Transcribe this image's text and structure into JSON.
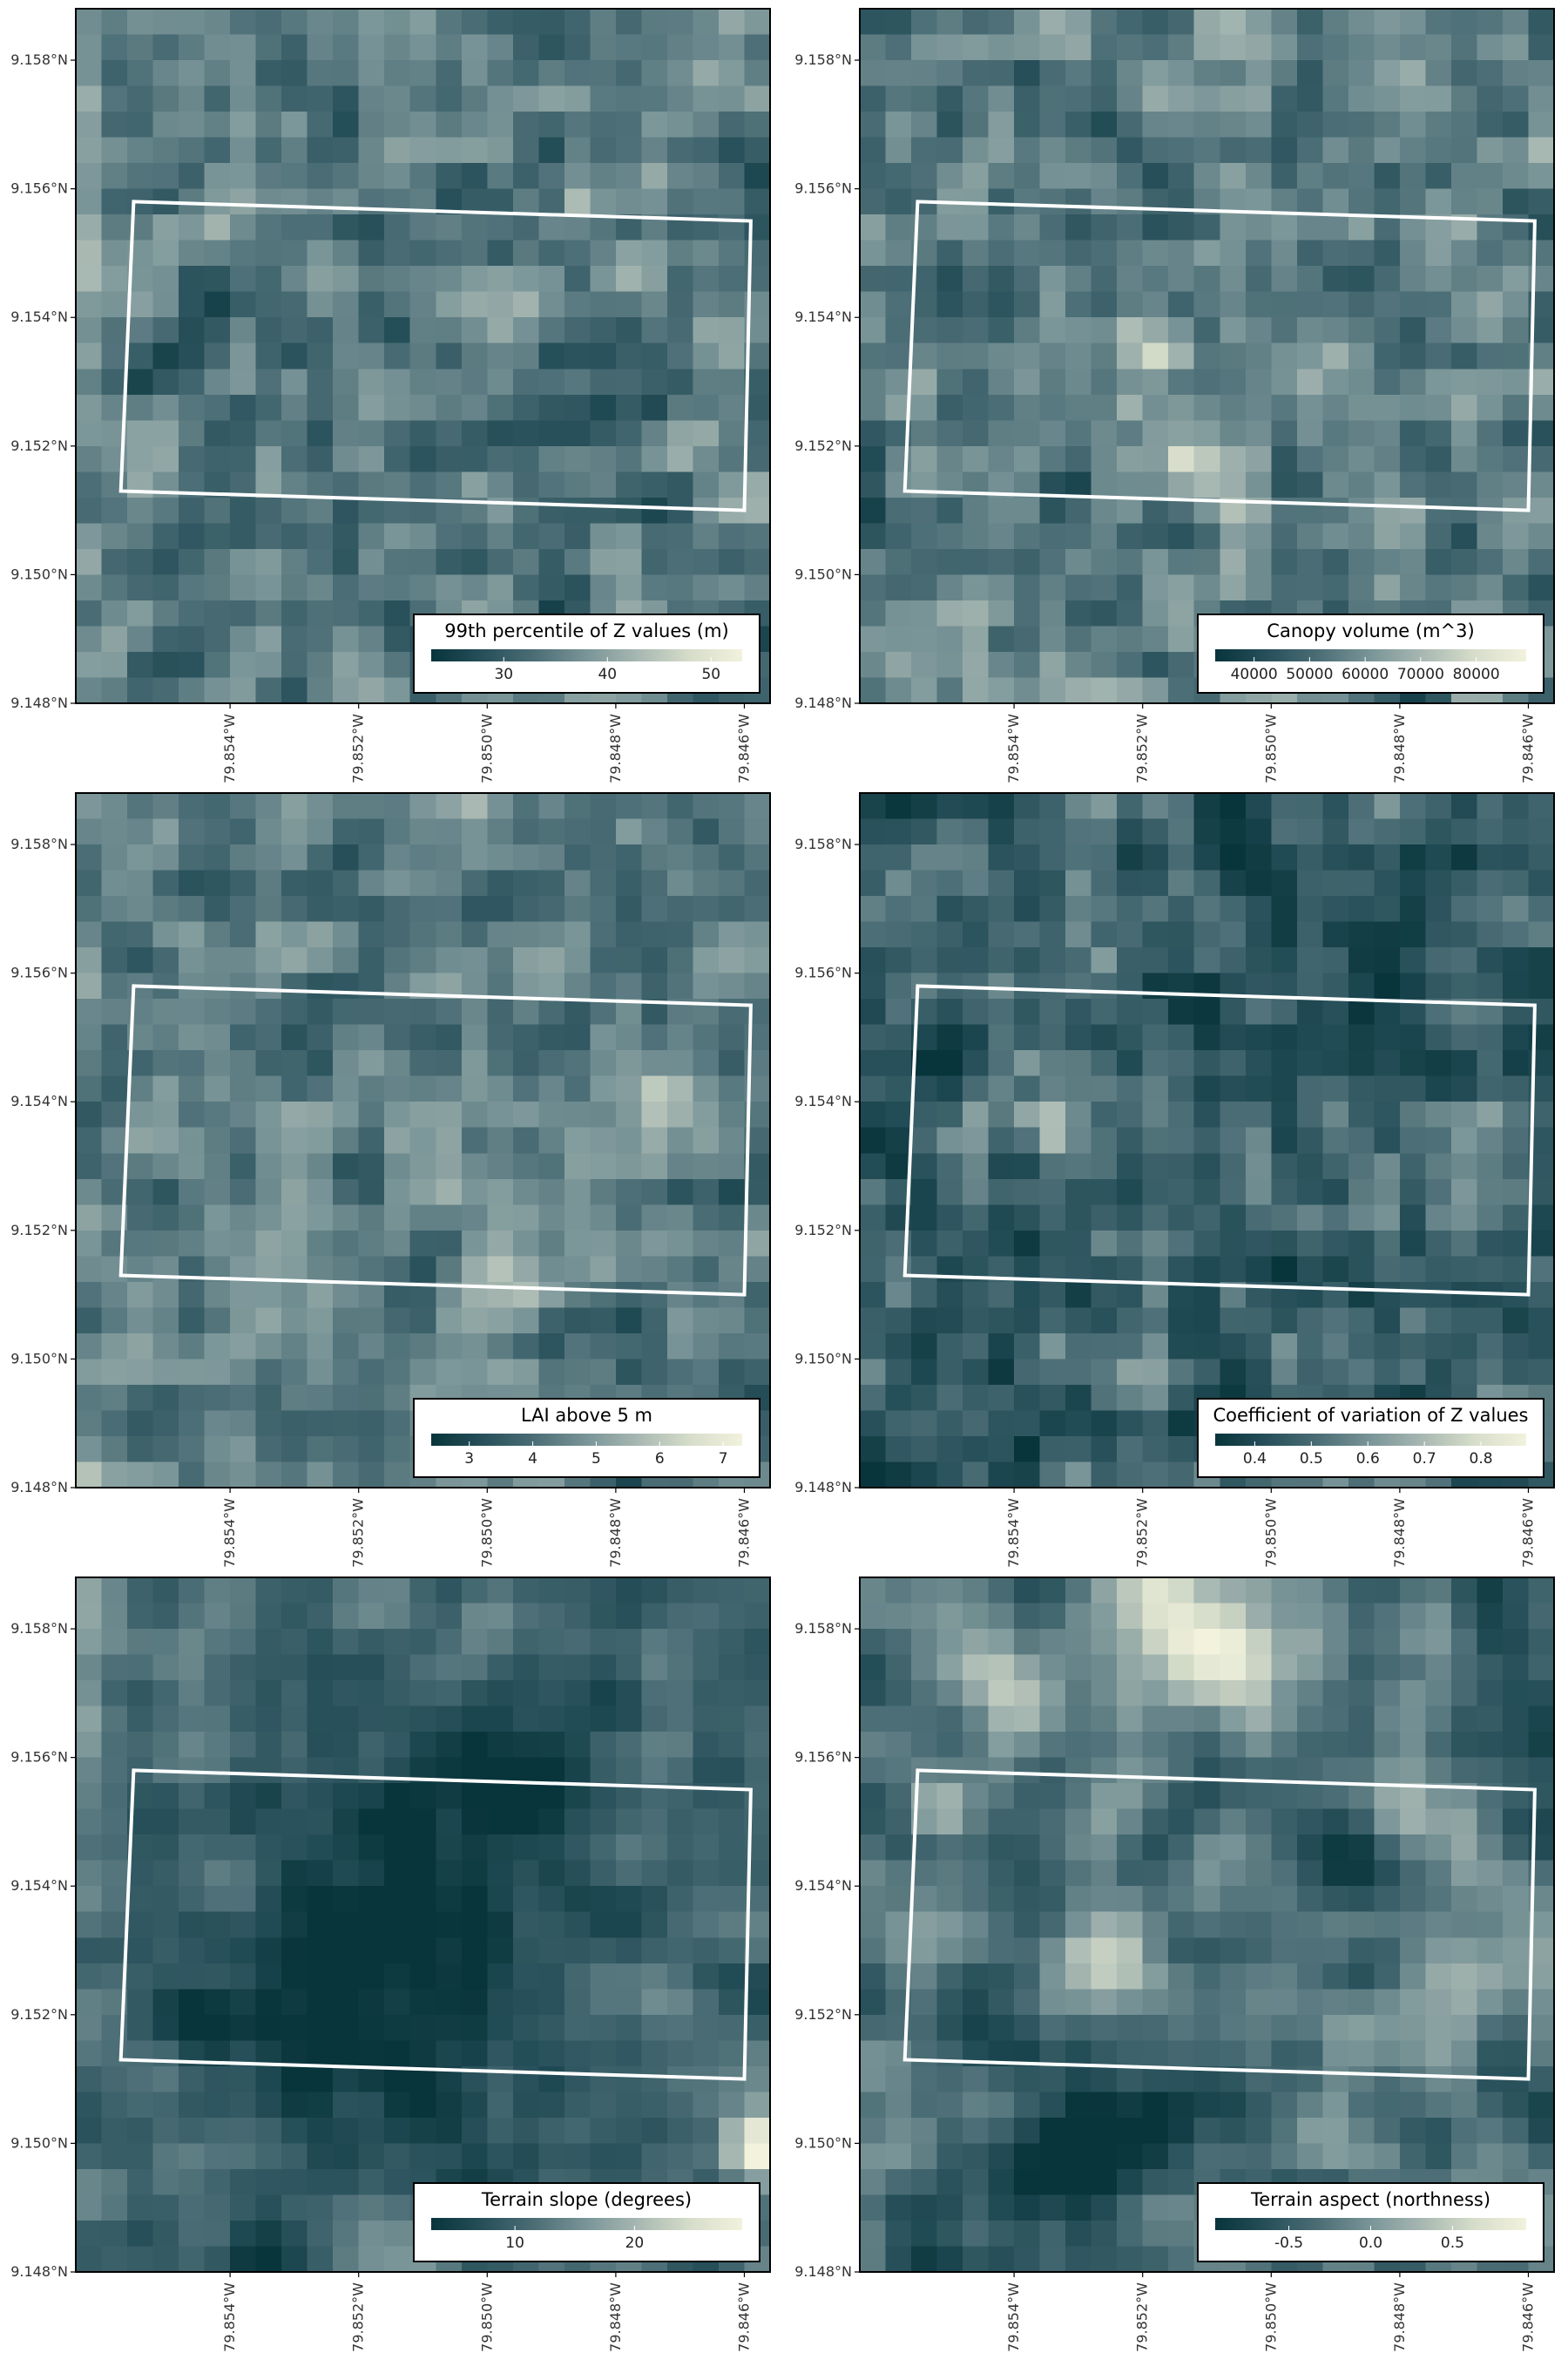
{
  "figure": {
    "colormap": [
      "#08343b",
      "#27505a",
      "#4c6e76",
      "#7a9598",
      "#a8b8b2",
      "#d6ddca",
      "#f2f2dd"
    ],
    "frame_color": "#000000",
    "outline_color": "#ffffff",
    "background": "#ffffff",
    "y_tick_labels": [
      "9.158°N",
      "9.156°N",
      "9.154°N",
      "9.152°N",
      "9.150°N",
      "9.148°N"
    ],
    "x_tick_labels": [
      "79.854°W",
      "79.852°W",
      "79.850°W",
      "79.848°W",
      "79.846°W"
    ]
  },
  "chart_data": [
    {
      "type": "heatmap",
      "title": "",
      "legend_title": "99th percentile of Z values (m)",
      "legend_ticks": [
        "30",
        "40",
        "50"
      ],
      "legend_tick_values": [
        30,
        40,
        50
      ],
      "value_range": [
        23,
        53
      ],
      "grid_rows": 27,
      "grid_cols": 27,
      "seed": 11,
      "smooth": 1,
      "bias": 0.0,
      "gamma": 1.0,
      "spots": [
        {
          "r": 9.5,
          "c": 20.5,
          "w": 1.0,
          "v": 0.35
        },
        {
          "r": 12.5,
          "c": 13.0,
          "w": 1.0,
          "v": 0.25
        }
      ],
      "area_outline": [
        [
          -79.8555,
          9.1558
        ],
        [
          -79.8459,
          9.1555
        ],
        [
          -79.846,
          9.151
        ],
        [
          -79.8557,
          9.1513
        ]
      ],
      "lon_range": [
        -79.8564,
        -79.8456
      ],
      "lat_range": [
        9.148,
        9.1588
      ],
      "legend_position": "bottom-right"
    },
    {
      "type": "heatmap",
      "title": "",
      "legend_title": "Canopy volume (m^3)",
      "legend_ticks": [
        "40000",
        "50000",
        "60000",
        "70000",
        "80000"
      ],
      "legend_tick_values": [
        40000,
        50000,
        60000,
        70000,
        80000
      ],
      "value_range": [
        33000,
        89000
      ],
      "grid_rows": 27,
      "grid_cols": 27,
      "seed": 23,
      "smooth": 1,
      "bias": 0.0,
      "gamma": 1.0,
      "spots": [
        {
          "r": 13.0,
          "c": 11.5,
          "w": 1.0,
          "v": 0.4
        },
        {
          "r": 17.5,
          "c": 12.5,
          "w": 2.0,
          "v": 0.25
        }
      ],
      "area_outline": [
        [
          -79.8555,
          9.1558
        ],
        [
          -79.8459,
          9.1555
        ],
        [
          -79.846,
          9.151
        ],
        [
          -79.8557,
          9.1513
        ]
      ],
      "lon_range": [
        -79.8564,
        -79.8456
      ],
      "lat_range": [
        9.148,
        9.1588
      ],
      "legend_position": "bottom-right"
    },
    {
      "type": "heatmap",
      "title": "",
      "legend_title": "LAI above 5 m",
      "legend_ticks": [
        "3",
        "4",
        "5",
        "6",
        "7"
      ],
      "legend_tick_values": [
        3,
        4,
        5,
        6,
        7
      ],
      "value_range": [
        2.4,
        7.3
      ],
      "grid_rows": 27,
      "grid_cols": 27,
      "seed": 37,
      "smooth": 1,
      "bias": 0.03,
      "gamma": 1.0,
      "spots": [
        {
          "r": 18.5,
          "c": 16.5,
          "w": 2.0,
          "v": 0.25
        },
        {
          "r": 12.0,
          "c": 21.0,
          "w": 2.5,
          "v": 0.2
        }
      ],
      "area_outline": [
        [
          -79.8555,
          9.1558
        ],
        [
          -79.8459,
          9.1555
        ],
        [
          -79.846,
          9.151
        ],
        [
          -79.8557,
          9.1513
        ]
      ],
      "lon_range": [
        -79.8564,
        -79.8456
      ],
      "lat_range": [
        9.148,
        9.1588
      ],
      "legend_position": "bottom-right"
    },
    {
      "type": "heatmap",
      "title": "",
      "legend_title": "Coefficient of variation of Z values",
      "legend_ticks": [
        "0.4",
        "0.5",
        "0.6",
        "0.7",
        "0.8"
      ],
      "legend_tick_values": [
        0.4,
        0.5,
        0.6,
        0.7,
        0.8
      ],
      "value_range": [
        0.33,
        0.88
      ],
      "grid_rows": 27,
      "grid_cols": 27,
      "seed": 51,
      "smooth": 1,
      "bias": -0.12,
      "gamma": 1.25,
      "spots": [
        {
          "r": 12.5,
          "c": 7.0,
          "w": 1.0,
          "v": 0.5
        }
      ],
      "area_outline": [
        [
          -79.8555,
          9.1558
        ],
        [
          -79.8459,
          9.1555
        ],
        [
          -79.846,
          9.151
        ],
        [
          -79.8557,
          9.1513
        ]
      ],
      "lon_range": [
        -79.8564,
        -79.8456
      ],
      "lat_range": [
        9.148,
        9.1588
      ],
      "legend_position": "bottom-right"
    },
    {
      "type": "heatmap",
      "title": "",
      "legend_title": "Terrain slope (degrees)",
      "legend_ticks": [
        "10",
        "20"
      ],
      "legend_tick_values": [
        10,
        20
      ],
      "value_range": [
        3,
        29
      ],
      "grid_rows": 27,
      "grid_cols": 27,
      "seed": 67,
      "smooth": 2,
      "bias": -0.1,
      "gamma": 1.0,
      "spots": [
        {
          "r": 14.0,
          "c": 11.0,
          "w": 6.5,
          "v": -0.45
        },
        {
          "r": 8.5,
          "c": 17.5,
          "w": 3.0,
          "v": -0.35
        },
        {
          "r": 21.5,
          "c": 26.0,
          "w": 1.2,
          "v": 0.6
        },
        {
          "r": 26.5,
          "c": 26.0,
          "w": 1.2,
          "v": 0.45
        }
      ],
      "area_outline": [
        [
          -79.8555,
          9.1558
        ],
        [
          -79.8459,
          9.1555
        ],
        [
          -79.846,
          9.151
        ],
        [
          -79.8557,
          9.1513
        ]
      ],
      "lon_range": [
        -79.8564,
        -79.8456
      ],
      "lat_range": [
        9.148,
        9.1588
      ],
      "legend_position": "bottom-right"
    },
    {
      "type": "heatmap",
      "title": "",
      "legend_title": "Terrain aspect (northness)",
      "legend_ticks": [
        "-0.5",
        "0.0",
        "0.5"
      ],
      "legend_tick_values": [
        -0.5,
        0.0,
        0.5
      ],
      "value_range": [
        -0.95,
        0.95
      ],
      "grid_rows": 27,
      "grid_cols": 27,
      "seed": 83,
      "smooth": 2,
      "bias": -0.05,
      "gamma": 1.0,
      "spots": [
        {
          "r": 1.5,
          "c": 12.0,
          "w": 3.5,
          "v": 0.55
        },
        {
          "r": 3.5,
          "c": 5.0,
          "w": 2.5,
          "v": 0.3
        },
        {
          "r": 14.5,
          "c": 9.0,
          "w": 2.0,
          "v": 0.45
        },
        {
          "r": 9.5,
          "c": 22.0,
          "w": 1.8,
          "v": 0.35
        },
        {
          "r": 8.5,
          "c": 2.5,
          "w": 1.2,
          "v": 0.35
        },
        {
          "r": 21.0,
          "c": 9.0,
          "w": 3.5,
          "v": -0.4
        }
      ],
      "area_outline": [
        [
          -79.8555,
          9.1558
        ],
        [
          -79.8459,
          9.1555
        ],
        [
          -79.846,
          9.151
        ],
        [
          -79.8557,
          9.1513
        ]
      ],
      "lon_range": [
        -79.8564,
        -79.8456
      ],
      "lat_range": [
        9.148,
        9.1588
      ],
      "legend_position": "bottom-right"
    }
  ]
}
